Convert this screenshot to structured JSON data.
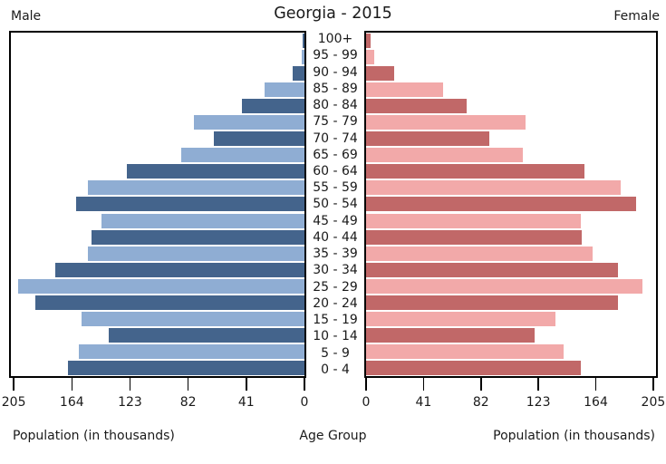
{
  "title": "Georgia - 2015",
  "left_header": "Male",
  "right_header": "Female",
  "footer": {
    "left_axis_label": "Population (in thousands)",
    "center_axis_label": "Age Group",
    "right_axis_label": "Population (in thousands)"
  },
  "colors": {
    "male_dark": "#44648C",
    "male_light": "#8FADD3",
    "female_dark": "#C16868",
    "female_light": "#F2A9A9",
    "axis": "#000000",
    "text": "#1a1a1a"
  },
  "chart_data": {
    "type": "bar",
    "subtype": "population-pyramid",
    "title": "Georgia - 2015",
    "xlabel": "Population (in thousands)",
    "center_label": "Age Group",
    "categories": [
      "100+",
      "95 - 99",
      "90 - 94",
      "85 - 89",
      "80 - 84",
      "75 - 79",
      "70 - 74",
      "65 - 69",
      "60 - 64",
      "55 - 59",
      "50 - 54",
      "45 - 49",
      "40 - 44",
      "35 - 39",
      "30 - 34",
      "25 - 29",
      "20 - 24",
      "15 - 19",
      "10 - 14",
      "5 - 9",
      "0 - 4"
    ],
    "series": [
      {
        "name": "Male",
        "values": [
          1,
          2,
          8,
          28,
          44,
          78,
          64,
          87,
          125,
          153,
          161,
          143,
          150,
          153,
          176,
          202,
          190,
          157,
          138,
          159,
          167
        ]
      },
      {
        "name": "Female",
        "values": [
          3,
          6,
          20,
          55,
          72,
          114,
          88,
          112,
          156,
          182,
          193,
          153,
          154,
          162,
          180,
          197,
          180,
          135,
          120,
          141,
          153
        ]
      }
    ],
    "xticks": [
      0,
      41,
      82,
      123,
      164,
      205
    ],
    "xlim": [
      0,
      207
    ],
    "grid": false,
    "legend_position": "none",
    "bar_color_alternation": "dark on even rows (from top), light on odd rows"
  }
}
